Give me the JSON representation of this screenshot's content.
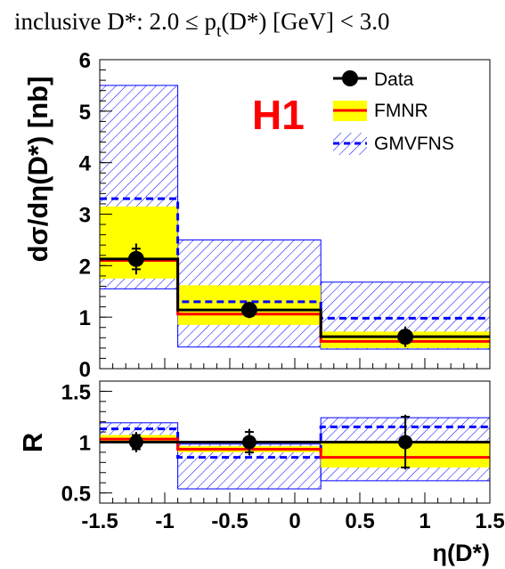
{
  "chart_data": {
    "type": "histogram",
    "title": "inclusive D*: 2.0 ≤ p",
    "title_sub": "t",
    "title_tail": "(D*) [GeV] < 3.0",
    "xlabel": "η(D*)",
    "x_ticks": [
      "-1.5",
      "-1",
      "-0.5",
      "0",
      "0.5",
      "1",
      "1.5"
    ],
    "x_tick_values": [
      -1.5,
      -1,
      -0.5,
      0,
      0.5,
      1,
      1.5
    ],
    "xlim": [
      -1.5,
      1.5
    ],
    "bin_edges": [
      -1.5,
      -0.9,
      0.2,
      1.5
    ],
    "logo": "H1",
    "colors": {
      "data": "#000000",
      "fmnr_band": "#ffff00",
      "fmnr_line": "#ff0000",
      "gmvfns": "#0000ff",
      "logo": "#ff0000"
    },
    "legend": {
      "placement": "top-right",
      "entries": [
        "Data",
        "FMNR",
        "GMVFNS"
      ]
    },
    "top_panel": {
      "ylabel": "dσ/dη(D*) [nb]",
      "ylim": [
        0,
        6
      ],
      "y_ticks": [
        "0",
        "1",
        "2",
        "3",
        "4",
        "5",
        "6"
      ],
      "y_tick_values": [
        0,
        1,
        2,
        3,
        4,
        5,
        6
      ],
      "data": {
        "x": [
          -1.22,
          -0.35,
          0.85
        ],
        "y": [
          2.13,
          1.14,
          0.62
        ],
        "err_stat": [
          0.2,
          0.12,
          0.12
        ],
        "err_tot": [
          0.3,
          0.16,
          0.2
        ],
        "xerr_low": [
          -1.5,
          -0.9,
          0.2
        ],
        "xerr_high": [
          -0.9,
          0.2,
          1.5
        ]
      },
      "fmnr": {
        "central": [
          2.1,
          1.06,
          0.53
        ],
        "low": [
          1.75,
          0.85,
          0.4
        ],
        "high": [
          3.15,
          1.62,
          0.72
        ]
      },
      "gmvfns": {
        "central": [
          3.3,
          1.3,
          0.98
        ],
        "low": [
          1.55,
          0.42,
          0.38
        ],
        "high": [
          5.5,
          2.5,
          1.68
        ]
      }
    },
    "bottom_panel": {
      "ylabel": "R",
      "ylim": [
        0.4,
        1.6
      ],
      "y_ticks": [
        "0.5",
        "1",
        "1.5"
      ],
      "y_tick_values": [
        0.5,
        1,
        1.5
      ],
      "data": {
        "y": [
          1.0,
          1.0,
          1.0
        ],
        "err_stat": [
          0.07,
          0.1,
          0.25
        ],
        "err_tot": [
          0.1,
          0.13,
          0.27
        ]
      },
      "fmnr": {
        "central": [
          1.03,
          0.93,
          0.85
        ],
        "low": [
          1.0,
          0.9,
          0.75
        ],
        "high": [
          1.07,
          0.96,
          1.0
        ]
      },
      "gmvfns": {
        "central": [
          1.13,
          0.85,
          1.15
        ],
        "low": [
          1.0,
          0.54,
          0.62
        ],
        "high": [
          1.19,
          0.98,
          1.24
        ]
      }
    }
  }
}
